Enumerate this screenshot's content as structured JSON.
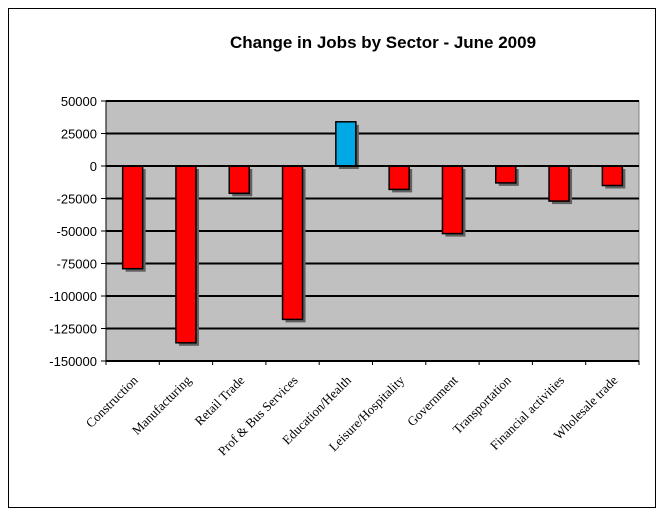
{
  "chart_data": {
    "type": "bar",
    "title": "Change in Jobs by Sector - June 2009",
    "xlabel": "",
    "ylabel": "",
    "categories": [
      "Construction",
      "Manufacturing",
      "Retail Trade",
      "Prof & Bus Services",
      "Education/Health",
      "Leisure/Hospitality",
      "Government",
      "Transportation",
      "Financial activities",
      "Wholesale trade"
    ],
    "values": [
      -79000,
      -136000,
      -21000,
      -118000,
      34000,
      -18000,
      -52000,
      -13000,
      -27000,
      -15000
    ],
    "ylim": [
      -150000,
      50000
    ],
    "yticks": [
      50000,
      25000,
      0,
      -25000,
      -50000,
      -75000,
      -100000,
      -125000,
      -150000
    ],
    "grid": true,
    "legend": "none",
    "colors": {
      "negative": "#ff0000",
      "positive": "#00a9e6",
      "plot_background": "#c0c0c0",
      "bar_outline": "#000000"
    }
  }
}
